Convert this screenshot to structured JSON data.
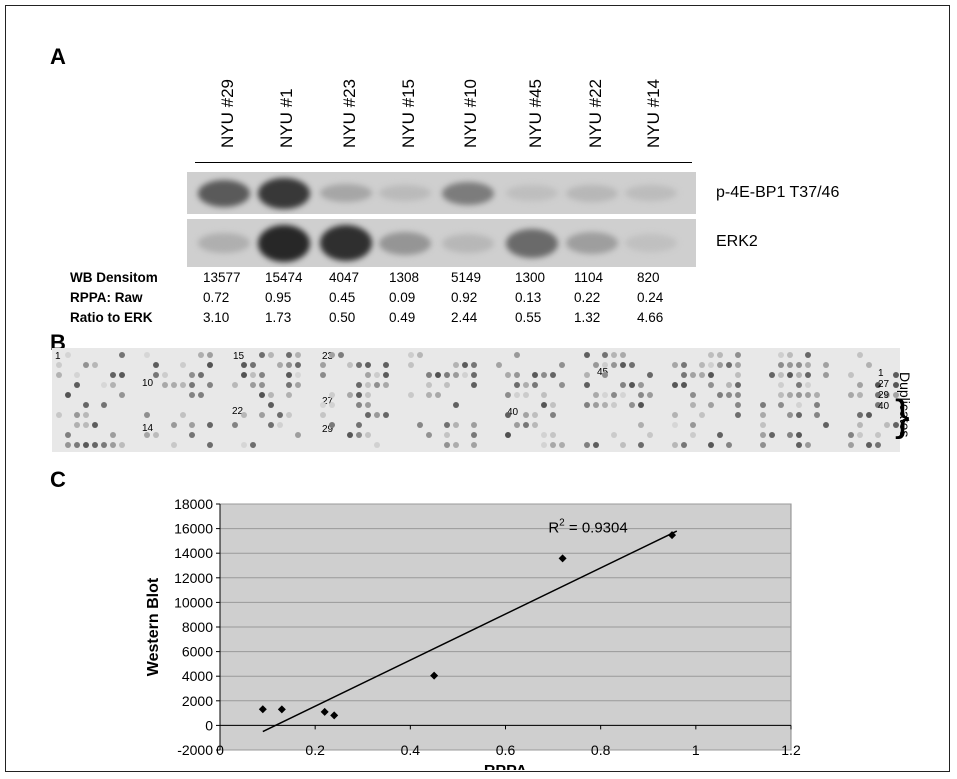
{
  "panels": {
    "a": "A",
    "b": "B",
    "c": "C"
  },
  "lanes": [
    "NYU #29",
    "NYU #1",
    "NYU #23",
    "NYU #15",
    "NYU #10",
    "NYU #45",
    "NYU #22",
    "NYU #14"
  ],
  "blots": {
    "p4ebp1_label": "p-4E-BP1 T37/46",
    "erk2_label": "ERK2",
    "p4ebp1_intensity": [
      0.65,
      0.85,
      0.2,
      0.08,
      0.45,
      0.06,
      0.1,
      0.07
    ],
    "erk2_intensity": [
      0.15,
      0.95,
      0.9,
      0.3,
      0.1,
      0.55,
      0.25,
      0.05
    ]
  },
  "table": {
    "rows": [
      {
        "label": "WB Densitom",
        "values": [
          "13577",
          "15474",
          "4047",
          "1308",
          "5149",
          "1300",
          "1104",
          "820"
        ]
      },
      {
        "label": "RPPA: Raw",
        "values": [
          "0.72",
          "0.95",
          "0.45",
          "0.09",
          "0.92",
          "0.13",
          "0.22",
          "0.24"
        ]
      },
      {
        "label": "Ratio to ERK",
        "values": [
          "3.10",
          "1.73",
          "0.50",
          "0.49",
          "2.44",
          "0.55",
          "1.32",
          "4.66"
        ]
      }
    ]
  },
  "array": {
    "spot_labels": [
      "1",
      "15",
      "23",
      "10",
      "45",
      "27",
      "22",
      "14",
      "40",
      "29"
    ],
    "right_labels": [
      "1",
      "27",
      "29",
      "40"
    ],
    "duplicates_label": "Duplicates"
  },
  "chart_data": {
    "type": "scatter",
    "title": "",
    "xlabel": "RPPA",
    "ylabel": "Western Blot",
    "xlim": [
      0,
      1.2
    ],
    "ylim": [
      -2000,
      18000
    ],
    "x_ticks": [
      "0",
      "0.2",
      "0.4",
      "0.6",
      "0.8",
      "1",
      "1.2"
    ],
    "y_ticks": [
      "-2000",
      "0",
      "2000",
      "4000",
      "6000",
      "8000",
      "10000",
      "12000",
      "14000",
      "16000",
      "18000"
    ],
    "grid": true,
    "points": [
      {
        "x": 0.09,
        "y": 1308
      },
      {
        "x": 0.13,
        "y": 1300
      },
      {
        "x": 0.22,
        "y": 1104
      },
      {
        "x": 0.24,
        "y": 820
      },
      {
        "x": 0.45,
        "y": 4047
      },
      {
        "x": 0.72,
        "y": 13577
      },
      {
        "x": 0.95,
        "y": 15474
      }
    ],
    "trendline": {
      "x": [
        0.09,
        0.96
      ],
      "y": [
        -500,
        15800
      ]
    },
    "annotation": "R",
    "annotation_sup": "2",
    "annotation_rest": " = 0.9304"
  }
}
